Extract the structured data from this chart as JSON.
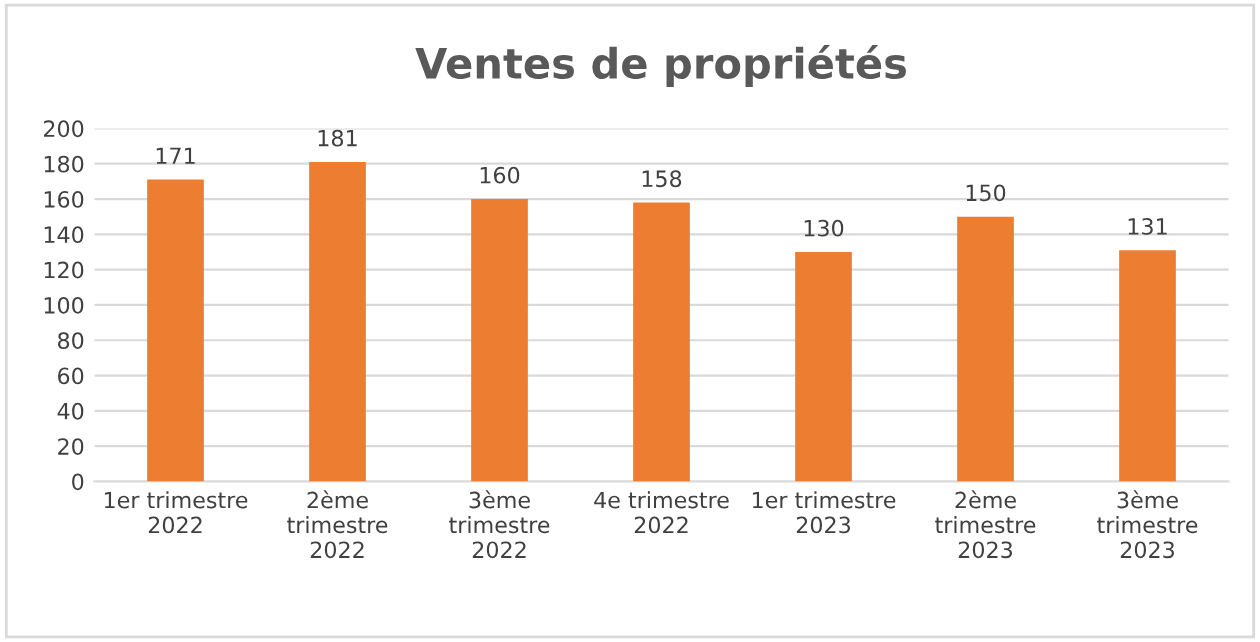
{
  "chart_data": {
    "type": "bar",
    "title": "Ventes de propriétés",
    "categories": [
      "1er trimestre\n2022",
      "2ème\ntrimestre\n2022",
      "3ème\ntrimestre\n2022",
      "4e trimestre\n2022",
      "1er trimestre\n2023",
      "2ème\ntrimestre\n2023",
      "3ème\ntrimestre\n2023"
    ],
    "values": [
      171,
      181,
      160,
      158,
      130,
      150,
      131
    ],
    "color": "#ed7d31",
    "ylim": [
      0,
      200
    ],
    "yticks": [
      0,
      20,
      40,
      60,
      80,
      100,
      120,
      140,
      160,
      180,
      200
    ],
    "grid": "y",
    "data_labels": true
  }
}
